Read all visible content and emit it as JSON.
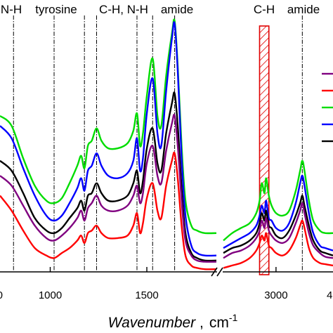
{
  "chart_data": {
    "type": "line",
    "title": "",
    "xlabel_main": "Wavenumber",
    "xlabel_sep": " ,",
    "xlabel_unit": "cm",
    "xlabel_unit_sup": "-1",
    "ylabel": "",
    "grid": false,
    "legend_position": "right",
    "panels": [
      {
        "xlim": [
          740,
          1860
        ],
        "ticks": [
          1000,
          1500
        ]
      },
      {
        "xlim": [
          2520,
          3520
        ],
        "ticks": [
          3000
        ]
      }
    ],
    "edge_tick_labels": [
      "0",
      "4"
    ],
    "band_labels": [
      {
        "text": "N-H",
        "x_panel": 0,
        "x": 810
      },
      {
        "text": "tyrosine",
        "x_panel": 0,
        "x": 830
      },
      {
        "text": "C-H, N-H",
        "x_panel": 0,
        "x": 1290
      },
      {
        "text": "amide",
        "x_panel": 0,
        "x": 1660
      },
      {
        "text": "C-H",
        "x_panel": 1,
        "x": 2890
      },
      {
        "text": "amide",
        "x_panel": 1,
        "x": 3240
      }
    ],
    "guide_lines": [
      {
        "panel": 0,
        "x": 810
      },
      {
        "panel": 0,
        "x": 1020
      },
      {
        "panel": 0,
        "x": 1177
      },
      {
        "panel": 0,
        "x": 1240
      },
      {
        "panel": 0,
        "x": 1449
      },
      {
        "panel": 0,
        "x": 1530
      },
      {
        "panel": 0,
        "x": 1644
      },
      {
        "panel": 1,
        "x": 3240
      }
    ],
    "highlight_band": {
      "panel": 1,
      "x": [
        2850,
        2935
      ]
    },
    "series": [
      {
        "color": "#00dd00",
        "panel1": [
          [
            740,
            0.62
          ],
          [
            800,
            0.58
          ],
          [
            860,
            0.45
          ],
          [
            920,
            0.34
          ],
          [
            980,
            0.28
          ],
          [
            1020,
            0.27
          ],
          [
            1060,
            0.29
          ],
          [
            1100,
            0.35
          ],
          [
            1140,
            0.42
          ],
          [
            1160,
            0.46
          ],
          [
            1177,
            0.41
          ],
          [
            1195,
            0.5
          ],
          [
            1215,
            0.52
          ],
          [
            1240,
            0.57
          ],
          [
            1265,
            0.52
          ],
          [
            1300,
            0.49
          ],
          [
            1350,
            0.49
          ],
          [
            1400,
            0.51
          ],
          [
            1430,
            0.56
          ],
          [
            1449,
            0.63
          ],
          [
            1465,
            0.5
          ],
          [
            1480,
            0.55
          ],
          [
            1500,
            0.7
          ],
          [
            1530,
            0.85
          ],
          [
            1555,
            0.62
          ],
          [
            1575,
            0.58
          ],
          [
            1600,
            0.78
          ],
          [
            1630,
            0.95
          ],
          [
            1644,
            1.0
          ],
          [
            1660,
            0.82
          ],
          [
            1680,
            0.5
          ],
          [
            1700,
            0.28
          ],
          [
            1730,
            0.18
          ],
          [
            1760,
            0.16
          ],
          [
            1800,
            0.15
          ],
          [
            1860,
            0.15
          ]
        ],
        "panel2": [
          [
            2520,
            0.12
          ],
          [
            2600,
            0.15
          ],
          [
            2680,
            0.17
          ],
          [
            2760,
            0.19
          ],
          [
            2820,
            0.23
          ],
          [
            2850,
            0.28
          ],
          [
            2870,
            0.35
          ],
          [
            2895,
            0.31
          ],
          [
            2910,
            0.37
          ],
          [
            2935,
            0.3
          ],
          [
            2960,
            0.26
          ],
          [
            3000,
            0.23
          ],
          [
            3060,
            0.22
          ],
          [
            3120,
            0.24
          ],
          [
            3180,
            0.32
          ],
          [
            3220,
            0.4
          ],
          [
            3240,
            0.44
          ],
          [
            3260,
            0.4
          ],
          [
            3300,
            0.28
          ],
          [
            3340,
            0.2
          ],
          [
            3400,
            0.16
          ],
          [
            3450,
            0.15
          ],
          [
            3520,
            0.15
          ]
        ]
      },
      {
        "color": "#0000ff",
        "panel1": [
          [
            740,
            0.58
          ],
          [
            800,
            0.53
          ],
          [
            860,
            0.41
          ],
          [
            920,
            0.3
          ],
          [
            980,
            0.22
          ],
          [
            1020,
            0.2
          ],
          [
            1060,
            0.22
          ],
          [
            1100,
            0.27
          ],
          [
            1140,
            0.33
          ],
          [
            1160,
            0.37
          ],
          [
            1177,
            0.32
          ],
          [
            1195,
            0.4
          ],
          [
            1215,
            0.42
          ],
          [
            1240,
            0.47
          ],
          [
            1265,
            0.42
          ],
          [
            1300,
            0.38
          ],
          [
            1350,
            0.37
          ],
          [
            1400,
            0.39
          ],
          [
            1430,
            0.44
          ],
          [
            1449,
            0.53
          ],
          [
            1465,
            0.4
          ],
          [
            1480,
            0.45
          ],
          [
            1500,
            0.63
          ],
          [
            1530,
            0.77
          ],
          [
            1555,
            0.55
          ],
          [
            1575,
            0.5
          ],
          [
            1600,
            0.72
          ],
          [
            1630,
            0.93
          ],
          [
            1644,
            0.99
          ],
          [
            1660,
            0.8
          ],
          [
            1680,
            0.45
          ],
          [
            1700,
            0.22
          ],
          [
            1730,
            0.1
          ],
          [
            1760,
            0.07
          ],
          [
            1800,
            0.06
          ],
          [
            1860,
            0.06
          ]
        ],
        "panel2": [
          [
            2520,
            0.09
          ],
          [
            2600,
            0.11
          ],
          [
            2680,
            0.13
          ],
          [
            2760,
            0.15
          ],
          [
            2820,
            0.18
          ],
          [
            2850,
            0.22
          ],
          [
            2870,
            0.26
          ],
          [
            2895,
            0.23
          ],
          [
            2910,
            0.28
          ],
          [
            2935,
            0.21
          ],
          [
            2960,
            0.2
          ],
          [
            3000,
            0.17
          ],
          [
            3060,
            0.16
          ],
          [
            3120,
            0.19
          ],
          [
            3180,
            0.27
          ],
          [
            3220,
            0.35
          ],
          [
            3240,
            0.38
          ],
          [
            3260,
            0.34
          ],
          [
            3300,
            0.23
          ],
          [
            3340,
            0.15
          ],
          [
            3400,
            0.1
          ],
          [
            3450,
            0.09
          ],
          [
            3520,
            0.08
          ]
        ]
      },
      {
        "color": "#000000",
        "panel1": [
          [
            740,
            0.44
          ],
          [
            800,
            0.4
          ],
          [
            860,
            0.31
          ],
          [
            920,
            0.21
          ],
          [
            980,
            0.16
          ],
          [
            1020,
            0.15
          ],
          [
            1060,
            0.17
          ],
          [
            1100,
            0.21
          ],
          [
            1140,
            0.25
          ],
          [
            1160,
            0.28
          ],
          [
            1177,
            0.24
          ],
          [
            1195,
            0.3
          ],
          [
            1215,
            0.31
          ],
          [
            1240,
            0.35
          ],
          [
            1265,
            0.31
          ],
          [
            1300,
            0.28
          ],
          [
            1350,
            0.28
          ],
          [
            1400,
            0.3
          ],
          [
            1430,
            0.35
          ],
          [
            1449,
            0.4
          ],
          [
            1465,
            0.31
          ],
          [
            1480,
            0.36
          ],
          [
            1500,
            0.49
          ],
          [
            1530,
            0.57
          ],
          [
            1555,
            0.43
          ],
          [
            1575,
            0.4
          ],
          [
            1600,
            0.55
          ],
          [
            1630,
            0.67
          ],
          [
            1644,
            0.71
          ],
          [
            1660,
            0.58
          ],
          [
            1680,
            0.33
          ],
          [
            1700,
            0.15
          ],
          [
            1730,
            0.07
          ],
          [
            1760,
            0.05
          ],
          [
            1800,
            0.04
          ],
          [
            1860,
            0.04
          ]
        ],
        "panel2": [
          [
            2520,
            0.07
          ],
          [
            2600,
            0.09
          ],
          [
            2680,
            0.1
          ],
          [
            2760,
            0.12
          ],
          [
            2820,
            0.15
          ],
          [
            2850,
            0.19
          ],
          [
            2870,
            0.23
          ],
          [
            2895,
            0.2
          ],
          [
            2910,
            0.24
          ],
          [
            2935,
            0.18
          ],
          [
            2960,
            0.17
          ],
          [
            3000,
            0.14
          ],
          [
            3060,
            0.13
          ],
          [
            3120,
            0.16
          ],
          [
            3180,
            0.22
          ],
          [
            3220,
            0.27
          ],
          [
            3240,
            0.3
          ],
          [
            3260,
            0.26
          ],
          [
            3300,
            0.18
          ],
          [
            3340,
            0.12
          ],
          [
            3400,
            0.08
          ],
          [
            3450,
            0.07
          ],
          [
            3520,
            0.06
          ]
        ]
      },
      {
        "color": "#800080",
        "panel1": [
          [
            740,
            0.38
          ],
          [
            800,
            0.34
          ],
          [
            860,
            0.26
          ],
          [
            920,
            0.18
          ],
          [
            980,
            0.13
          ],
          [
            1020,
            0.12
          ],
          [
            1060,
            0.14
          ],
          [
            1100,
            0.17
          ],
          [
            1140,
            0.21
          ],
          [
            1160,
            0.24
          ],
          [
            1177,
            0.2
          ],
          [
            1195,
            0.25
          ],
          [
            1215,
            0.27
          ],
          [
            1240,
            0.3
          ],
          [
            1265,
            0.26
          ],
          [
            1300,
            0.24
          ],
          [
            1350,
            0.24
          ],
          [
            1400,
            0.26
          ],
          [
            1430,
            0.3
          ],
          [
            1449,
            0.34
          ],
          [
            1465,
            0.27
          ],
          [
            1480,
            0.31
          ],
          [
            1500,
            0.43
          ],
          [
            1530,
            0.5
          ],
          [
            1555,
            0.38
          ],
          [
            1575,
            0.35
          ],
          [
            1600,
            0.48
          ],
          [
            1630,
            0.59
          ],
          [
            1644,
            0.62
          ],
          [
            1660,
            0.5
          ],
          [
            1680,
            0.28
          ],
          [
            1700,
            0.12
          ],
          [
            1730,
            0.06
          ],
          [
            1760,
            0.04
          ],
          [
            1800,
            0.035
          ],
          [
            1860,
            0.035
          ]
        ],
        "panel2": [
          [
            2520,
            0.05
          ],
          [
            2600,
            0.07
          ],
          [
            2680,
            0.08
          ],
          [
            2760,
            0.1
          ],
          [
            2820,
            0.13
          ],
          [
            2850,
            0.16
          ],
          [
            2870,
            0.2
          ],
          [
            2895,
            0.17
          ],
          [
            2910,
            0.21
          ],
          [
            2935,
            0.16
          ],
          [
            2960,
            0.14
          ],
          [
            3000,
            0.12
          ],
          [
            3060,
            0.11
          ],
          [
            3120,
            0.13
          ],
          [
            3180,
            0.19
          ],
          [
            3220,
            0.24
          ],
          [
            3240,
            0.27
          ],
          [
            3260,
            0.23
          ],
          [
            3300,
            0.15
          ],
          [
            3340,
            0.1
          ],
          [
            3400,
            0.07
          ],
          [
            3450,
            0.055
          ],
          [
            3520,
            0.05
          ]
        ]
      },
      {
        "color": "#ff0000",
        "panel1": [
          [
            740,
            0.3
          ],
          [
            800,
            0.24
          ],
          [
            860,
            0.16
          ],
          [
            920,
            0.09
          ],
          [
            980,
            0.06
          ],
          [
            1020,
            0.05
          ],
          [
            1060,
            0.07
          ],
          [
            1100,
            0.09
          ],
          [
            1140,
            0.12
          ],
          [
            1160,
            0.14
          ],
          [
            1177,
            0.11
          ],
          [
            1195,
            0.15
          ],
          [
            1215,
            0.16
          ],
          [
            1240,
            0.18
          ],
          [
            1265,
            0.15
          ],
          [
            1300,
            0.13
          ],
          [
            1350,
            0.13
          ],
          [
            1400,
            0.14
          ],
          [
            1430,
            0.18
          ],
          [
            1449,
            0.23
          ],
          [
            1465,
            0.15
          ],
          [
            1480,
            0.19
          ],
          [
            1500,
            0.29
          ],
          [
            1530,
            0.35
          ],
          [
            1555,
            0.24
          ],
          [
            1575,
            0.21
          ],
          [
            1600,
            0.34
          ],
          [
            1630,
            0.44
          ],
          [
            1644,
            0.47
          ],
          [
            1660,
            0.37
          ],
          [
            1680,
            0.18
          ],
          [
            1700,
            0.06
          ],
          [
            1730,
            0.02
          ],
          [
            1760,
            0.01
          ],
          [
            1800,
            0.005
          ],
          [
            1860,
            0.005
          ]
        ],
        "panel2": [
          [
            2520,
            0.01
          ],
          [
            2600,
            0.02
          ],
          [
            2680,
            0.03
          ],
          [
            2760,
            0.05
          ],
          [
            2820,
            0.08
          ],
          [
            2850,
            0.11
          ],
          [
            2870,
            0.14
          ],
          [
            2895,
            0.12
          ],
          [
            2910,
            0.15
          ],
          [
            2935,
            0.1
          ],
          [
            2960,
            0.09
          ],
          [
            3000,
            0.07
          ],
          [
            3060,
            0.06
          ],
          [
            3120,
            0.08
          ],
          [
            3180,
            0.13
          ],
          [
            3220,
            0.18
          ],
          [
            3240,
            0.2
          ],
          [
            3260,
            0.17
          ],
          [
            3300,
            0.09
          ],
          [
            3340,
            0.05
          ],
          [
            3400,
            0.03
          ],
          [
            3450,
            0.025
          ],
          [
            3520,
            0.02
          ]
        ]
      }
    ],
    "legend_colors": [
      "#800080",
      "#ff0000",
      "#00dd00",
      "#0000ff",
      "#000000"
    ]
  }
}
